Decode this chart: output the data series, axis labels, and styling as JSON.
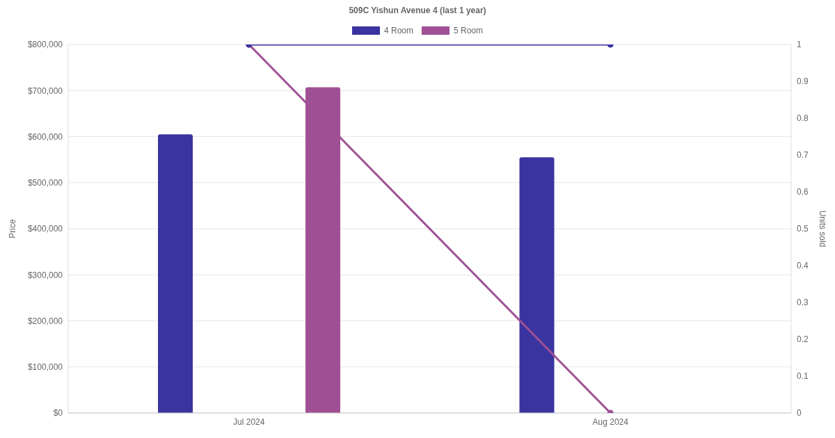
{
  "chart_data": {
    "type": "bar",
    "title": "509C Yishun Avenue 4 (last 1 year)",
    "categories": [
      "Jul 2024",
      "Aug 2024"
    ],
    "series": [
      {
        "name": "4 Room",
        "color": "#3a34a0",
        "values": [
          605000,
          555000
        ]
      },
      {
        "name": "5 Room",
        "color": "#9f5094",
        "values": [
          707000,
          null
        ]
      },
      {
        "type": "line",
        "axis": "y2",
        "color": "#9f5094",
        "values": [
          1,
          0
        ]
      },
      {
        "type": "line",
        "axis": "y2",
        "color": "#3a34a0",
        "values": [
          1,
          1
        ]
      }
    ],
    "ylabel": "Price",
    "y2label": "Units sold",
    "ylim": [
      0,
      800000
    ],
    "yticks": [
      {
        "value": 0,
        "label": "$0"
      },
      {
        "value": 100000,
        "label": "$100,000"
      },
      {
        "value": 200000,
        "label": "$200,000"
      },
      {
        "value": 300000,
        "label": "$300,000"
      },
      {
        "value": 400000,
        "label": "$400,000"
      },
      {
        "value": 500000,
        "label": "$500,000"
      },
      {
        "value": 600000,
        "label": "$600,000"
      },
      {
        "value": 700000,
        "label": "$700,000"
      },
      {
        "value": 800000,
        "label": "$800,000"
      }
    ],
    "y2lim": [
      0,
      1
    ],
    "y2ticks": [
      0,
      0.1,
      0.2,
      0.3,
      0.4,
      0.5,
      0.6,
      0.7,
      0.8,
      0.9,
      1
    ],
    "grid": "y",
    "legend": "top",
    "marker": "circle"
  }
}
